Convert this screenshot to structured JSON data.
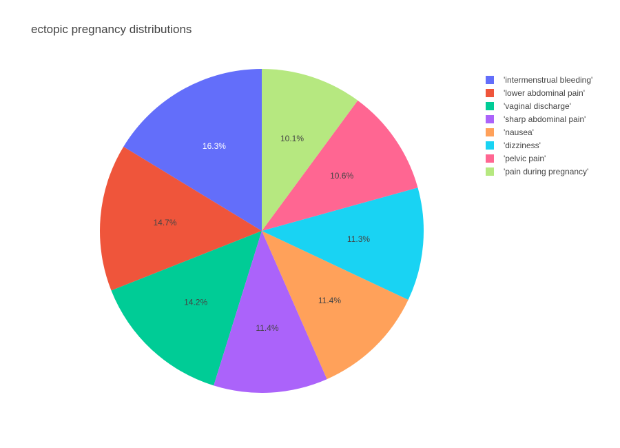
{
  "chart_data": {
    "type": "pie",
    "title": "ectopic pregnancy distributions",
    "labels": [
      "'intermenstrual bleeding'",
      "'lower abdominal pain'",
      "'vaginal discharge'",
      "'sharp abdominal pain'",
      "'nausea'",
      "'dizziness'",
      "'pelvic pain'",
      "'pain during pregnancy'"
    ],
    "values": [
      16.3,
      14.7,
      14.2,
      11.4,
      11.4,
      11.3,
      10.6,
      10.1
    ],
    "value_labels": [
      "16.3%",
      "14.7%",
      "14.2%",
      "11.4%",
      "11.4%",
      "11.3%",
      "10.6%",
      "10.1%"
    ],
    "colors": [
      "#636efa",
      "#ef553b",
      "#00cc96",
      "#ab63fa",
      "#ffa15a",
      "#19d3f3",
      "#ff6692",
      "#b6e880"
    ],
    "label_text_colors": [
      "#ffffff",
      "#444444",
      "#444444",
      "#444444",
      "#444444",
      "#444444",
      "#444444",
      "#444444"
    ],
    "direction": "counterclockwise",
    "start": "top",
    "legend_position": "right",
    "legend_order": [
      0,
      1,
      2,
      3,
      4,
      5,
      6,
      7
    ]
  }
}
